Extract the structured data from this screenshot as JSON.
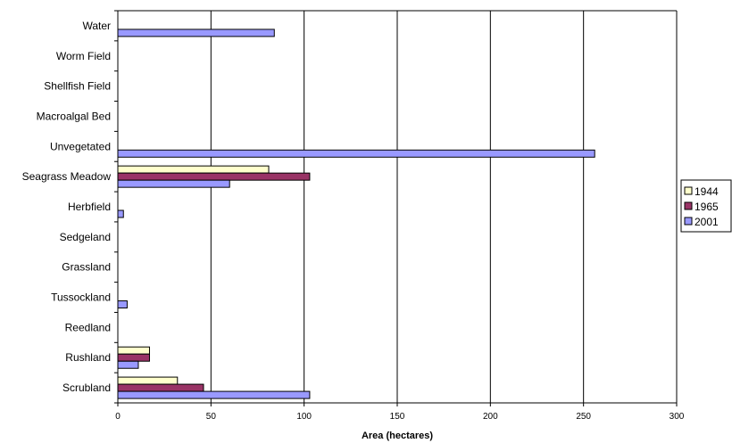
{
  "chart_data": {
    "type": "bar",
    "orientation": "horizontal",
    "title": "",
    "xlabel": "Area (hectares)",
    "ylabel": "",
    "xlim": [
      0,
      300
    ],
    "x_ticks": [
      0,
      50,
      100,
      150,
      200,
      250,
      300
    ],
    "grid": "vertical-major",
    "legend_position": "right",
    "categories": [
      "Water",
      "Worm Field",
      "Shellfish Field",
      "Macroalgal Bed",
      "Unvegetated",
      "Seagrass Meadow",
      "Herbfield",
      "Sedgeland",
      "Grassland",
      "Tussockland",
      "Reedland",
      "Rushland",
      "Scrubland"
    ],
    "series": [
      {
        "name": "1944",
        "color": "#ffffcc",
        "values": [
          0,
          0,
          0,
          0,
          0,
          81,
          0,
          0,
          0,
          0,
          0,
          17,
          32
        ]
      },
      {
        "name": "1965",
        "color": "#993366",
        "values": [
          0,
          0,
          0,
          0,
          0,
          103,
          0,
          0,
          0,
          0,
          0,
          17,
          46
        ]
      },
      {
        "name": "2001",
        "color": "#9999ff",
        "values": [
          84,
          0,
          0,
          0,
          256,
          60,
          3,
          0,
          0,
          5,
          0,
          11,
          103
        ]
      }
    ]
  }
}
